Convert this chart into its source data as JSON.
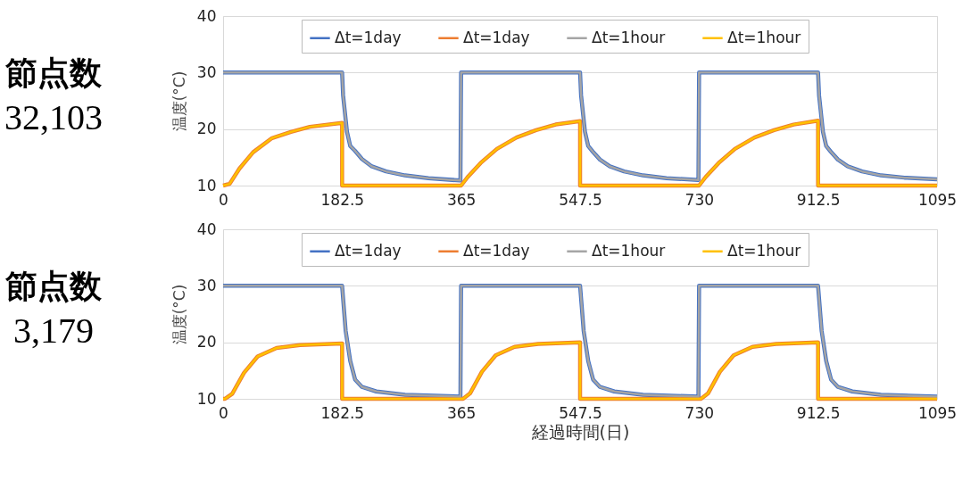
{
  "chart_data": [
    {
      "type": "line",
      "title": "節点数",
      "subtitle": "32,103",
      "ylabel": "温度(°C)",
      "xlim": [
        0,
        1095
      ],
      "xticks": [
        0,
        182.5,
        365,
        547.5,
        730,
        912.5,
        1095
      ],
      "ylim": [
        10,
        40
      ],
      "yticks": [
        10,
        20,
        30,
        40
      ],
      "grid": "y",
      "legend": "top",
      "series": [
        {
          "name": "Δt=1day",
          "color": "#4472c4",
          "x": [
            0,
            182.5,
            184,
            190,
            195,
            202,
            213,
            228,
            250,
            279,
            315,
            364,
            365,
            547.5,
            549,
            555,
            560,
            567,
            578,
            593,
            615,
            644,
            680,
            729,
            730,
            912.5,
            914,
            920,
            925,
            932,
            943,
            958,
            980,
            1009,
            1045,
            1095
          ],
          "values": [
            30,
            30,
            26,
            19.5,
            17,
            16.2,
            14.7,
            13.4,
            12.5,
            11.8,
            11.3,
            10.9,
            30,
            30,
            26,
            19.5,
            17,
            16,
            14.6,
            13.4,
            12.5,
            11.8,
            11.3,
            11,
            30,
            30,
            26,
            19.5,
            17,
            16,
            14.6,
            13.4,
            12.5,
            11.8,
            11.4,
            11.1
          ]
        },
        {
          "name": "Δt=1day",
          "color": "#ed7d31",
          "x": [
            0,
            10,
            25,
            46,
            75,
            104,
            133,
            182.5,
            182.5,
            365,
            375,
            395,
            420,
            450,
            480,
            510,
            547.5,
            547.5,
            730,
            740,
            760,
            785,
            815,
            845,
            875,
            912.5,
            912.5,
            1095
          ],
          "values": [
            10,
            10.3,
            13,
            15.9,
            18.4,
            19.5,
            20.4,
            21.1,
            10,
            10,
            11.5,
            14,
            16.5,
            18.5,
            19.8,
            20.8,
            21.4,
            10,
            10,
            11.5,
            14,
            16.5,
            18.5,
            19.8,
            20.8,
            21.5,
            10,
            10
          ]
        },
        {
          "name": "Δt=1hour",
          "color": "#a5a5a5",
          "x": [
            0,
            182.5,
            184,
            190,
            195,
            202,
            213,
            228,
            250,
            279,
            315,
            364,
            365,
            547.5,
            549,
            555,
            560,
            567,
            578,
            593,
            615,
            644,
            680,
            729,
            730,
            912.5,
            914,
            920,
            925,
            932,
            943,
            958,
            980,
            1009,
            1045,
            1095
          ],
          "values": [
            30,
            30,
            26,
            19.5,
            17,
            16.2,
            14.7,
            13.4,
            12.5,
            11.8,
            11.3,
            10.9,
            30,
            30,
            26,
            19.5,
            17,
            16,
            14.6,
            13.4,
            12.5,
            11.8,
            11.3,
            11,
            30,
            30,
            26,
            19.5,
            17,
            16,
            14.6,
            13.4,
            12.5,
            11.8,
            11.4,
            11.1
          ]
        },
        {
          "name": "Δt=1hour",
          "color": "#ffc000",
          "x": [
            0,
            10,
            25,
            46,
            75,
            104,
            133,
            182.5,
            182.5,
            365,
            375,
            395,
            420,
            450,
            480,
            510,
            547.5,
            547.5,
            730,
            740,
            760,
            785,
            815,
            845,
            875,
            912.5,
            912.5,
            1095
          ],
          "values": [
            10,
            10.3,
            13,
            15.9,
            18.4,
            19.5,
            20.4,
            21.1,
            10,
            10,
            11.5,
            14,
            16.5,
            18.5,
            19.8,
            20.8,
            21.4,
            10,
            10,
            11.5,
            14,
            16.5,
            18.5,
            19.8,
            20.8,
            21.5,
            10,
            10
          ]
        }
      ]
    },
    {
      "type": "line",
      "title": "節点数",
      "subtitle": "3,179",
      "xlabel": "経過時間(日)",
      "ylabel": "温度(°C)",
      "xlim": [
        0,
        1095
      ],
      "xticks": [
        0,
        182.5,
        365,
        547.5,
        730,
        912.5,
        1095
      ],
      "ylim": [
        10,
        40
      ],
      "yticks": [
        10,
        20,
        30,
        40
      ],
      "grid": "y",
      "legend": "top",
      "series": [
        {
          "name": "Δt=1day",
          "color": "#4472c4",
          "x": [
            0,
            182.5,
            188,
            195,
            202.5,
            213,
            235,
            279,
            364,
            365,
            547.5,
            553,
            560,
            567.5,
            578,
            600,
            644,
            729,
            730,
            912.5,
            918,
            925,
            932.5,
            943,
            965,
            1009,
            1095
          ],
          "values": [
            30,
            30,
            22,
            16.7,
            13.4,
            12.1,
            11.3,
            10.7,
            10.4,
            30,
            30,
            22,
            16.7,
            13.4,
            12.1,
            11.3,
            10.7,
            10.4,
            30,
            30,
            22,
            16.7,
            13.4,
            12.1,
            11.3,
            10.7,
            10.4
          ]
        },
        {
          "name": "Δt=1day",
          "color": "#ed7d31",
          "x": [
            0,
            3,
            14,
            32,
            53,
            82,
            118,
            182.5,
            182.5,
            365,
            368,
            379,
            397,
            418,
            447,
            483,
            547.5,
            547.5,
            730,
            733,
            744,
            762,
            783,
            812,
            848,
            912.5,
            912.5,
            1095
          ],
          "values": [
            10,
            10,
            10.9,
            14.6,
            17.5,
            19,
            19.5,
            19.8,
            10,
            10,
            10,
            11,
            14.8,
            17.7,
            19.2,
            19.7,
            20,
            10,
            10,
            10,
            11,
            14.8,
            17.7,
            19.2,
            19.7,
            20,
            10,
            10
          ]
        },
        {
          "name": "Δt=1hour",
          "color": "#a5a5a5",
          "x": [
            0,
            182.5,
            188,
            195,
            202.5,
            213,
            235,
            279,
            364,
            365,
            547.5,
            553,
            560,
            567.5,
            578,
            600,
            644,
            729,
            730,
            912.5,
            918,
            925,
            932.5,
            943,
            965,
            1009,
            1095
          ],
          "values": [
            30,
            30,
            22,
            16.7,
            13.4,
            12.1,
            11.3,
            10.7,
            10.4,
            30,
            30,
            22,
            16.7,
            13.4,
            12.1,
            11.3,
            10.7,
            10.4,
            30,
            30,
            22,
            16.7,
            13.4,
            12.1,
            11.3,
            10.7,
            10.4
          ]
        },
        {
          "name": "Δt=1hour",
          "color": "#ffc000",
          "x": [
            0,
            3,
            14,
            32,
            53,
            82,
            118,
            182.5,
            182.5,
            365,
            368,
            379,
            397,
            418,
            447,
            483,
            547.5,
            547.5,
            730,
            733,
            744,
            762,
            783,
            812,
            848,
            912.5,
            912.5,
            1095
          ],
          "values": [
            10,
            10,
            10.9,
            14.6,
            17.5,
            19,
            19.5,
            19.8,
            10,
            10,
            10,
            11,
            14.8,
            17.7,
            19.2,
            19.7,
            20,
            10,
            10,
            10,
            11,
            14.8,
            17.7,
            19.2,
            19.7,
            20,
            10,
            10
          ]
        }
      ]
    }
  ]
}
